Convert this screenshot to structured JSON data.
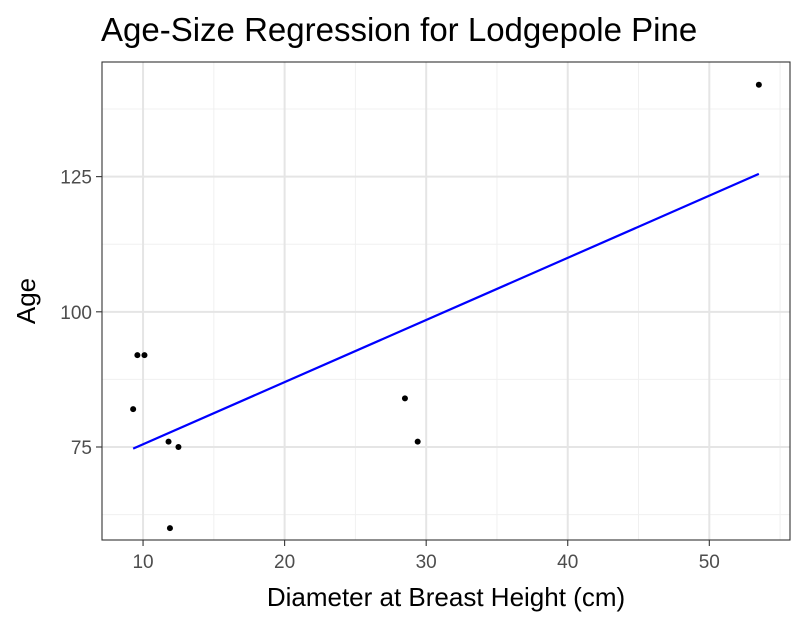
{
  "chart_data": {
    "type": "scatter",
    "title": "Age-Size Regression for Lodgepole Pine",
    "xlabel": "Diameter at Breast Height (cm)",
    "ylabel": "Age",
    "xlim": [
      7.1,
      55.7
    ],
    "ylim": [
      57.8,
      146.2
    ],
    "x_ticks": [
      10,
      20,
      30,
      40,
      50
    ],
    "y_ticks": [
      75,
      100,
      125
    ],
    "x_tick_labels": [
      "10",
      "20",
      "30",
      "40",
      "50"
    ],
    "y_tick_labels": [
      "75",
      "100",
      "125"
    ],
    "grid": true,
    "series": [
      {
        "type": "scatter",
        "color": "#000000",
        "points": [
          {
            "x": 9.3,
            "y": 82
          },
          {
            "x": 9.6,
            "y": 92
          },
          {
            "x": 10.1,
            "y": 92
          },
          {
            "x": 11.8,
            "y": 76
          },
          {
            "x": 11.9,
            "y": 60
          },
          {
            "x": 12.5,
            "y": 75
          },
          {
            "x": 28.5,
            "y": 84
          },
          {
            "x": 29.4,
            "y": 76
          },
          {
            "x": 53.5,
            "y": 142
          }
        ]
      },
      {
        "type": "line",
        "color": "#0000ff",
        "points": [
          {
            "x": 9.3,
            "y": 74.7
          },
          {
            "x": 53.5,
            "y": 125.5
          }
        ]
      }
    ]
  }
}
